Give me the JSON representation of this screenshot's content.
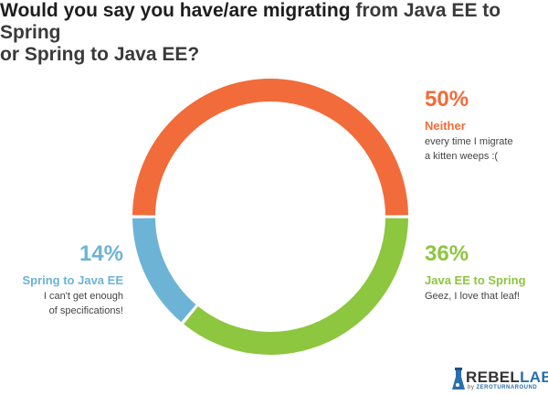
{
  "title": {
    "bold": "Would you say you have/are migrating",
    "rest_line1": " from Java EE to Spring",
    "line2": "or Spring to Java EE?"
  },
  "chart_data": {
    "type": "pie",
    "donut": true,
    "slices": [
      {
        "label": "Neither",
        "value": 50,
        "pct_label": "50%",
        "color": "#f26b3a",
        "description": [
          "every time I migrate",
          "a kitten weeps :("
        ]
      },
      {
        "label": "Java EE to Spring",
        "value": 36,
        "pct_label": "36%",
        "color": "#8dc63f",
        "description": [
          "Geez, I love that leaf!"
        ]
      },
      {
        "label": "Spring to Java EE",
        "value": 14,
        "pct_label": "14%",
        "color": "#6db3d6",
        "description": [
          "I can't get enough",
          "of specifications!"
        ]
      }
    ]
  },
  "logo": {
    "rebel": "REBEL",
    "labs": "LABS",
    "by": "by ",
    "zeroturnaround": "ZEROTURNAROUND"
  }
}
